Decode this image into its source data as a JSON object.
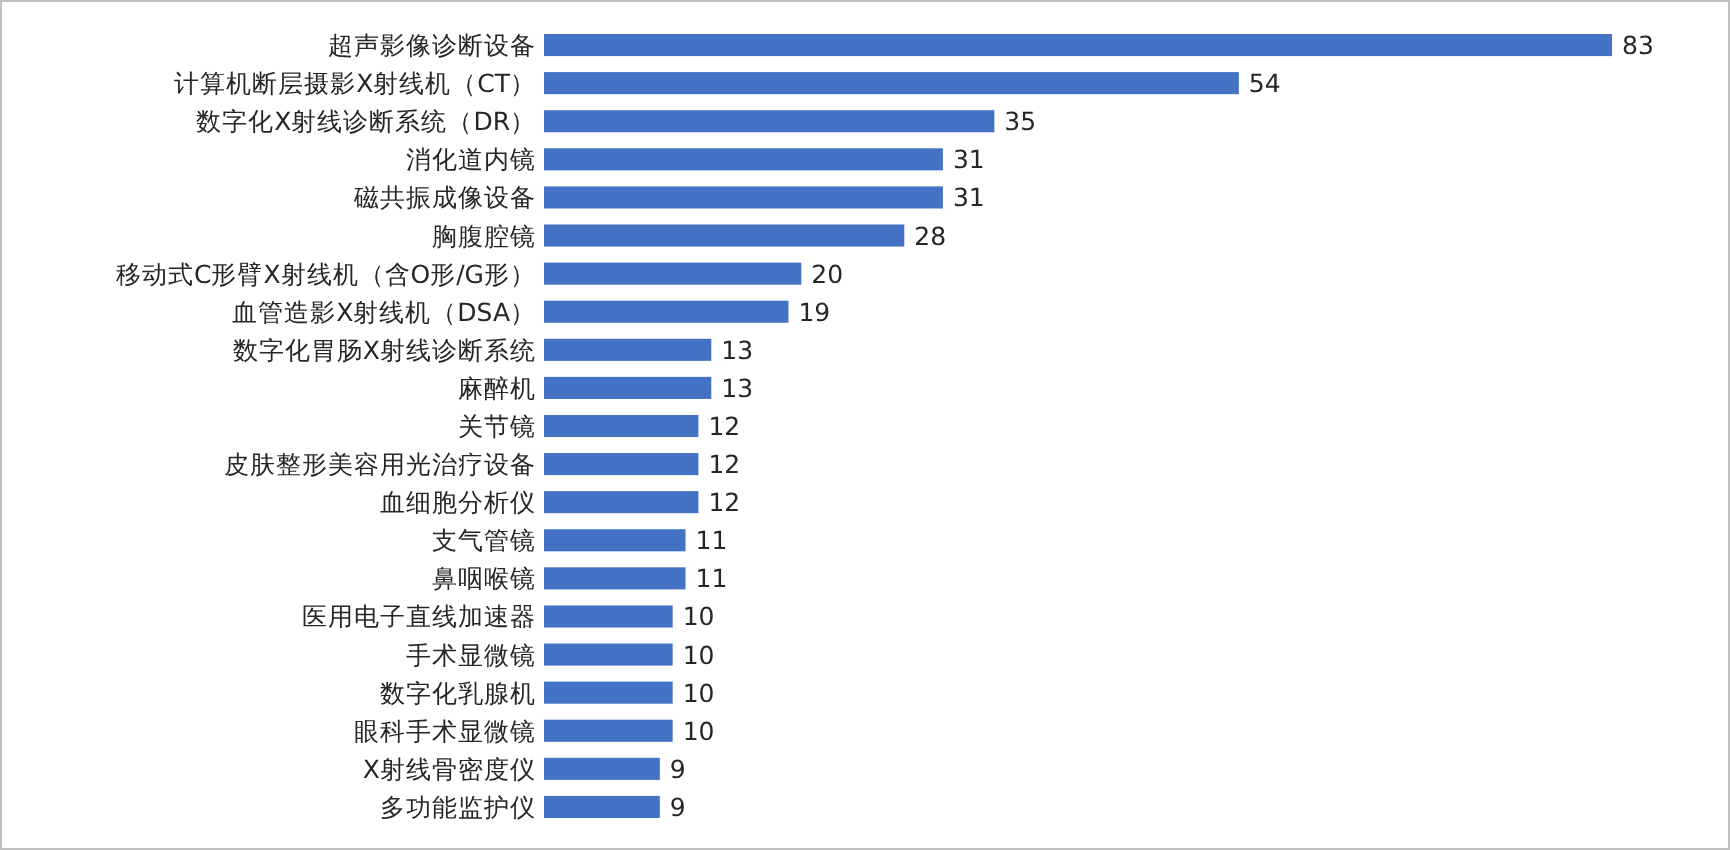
{
  "chart_data": {
    "type": "bar",
    "orientation": "horizontal",
    "data_labels": true,
    "color": "#4472c4",
    "categories": [
      "超声影像诊断设备",
      "计算机断层摄影X射线机（CT）",
      "数字化X射线诊断系统（DR）",
      "消化道内镜",
      "磁共振成像设备",
      "胸腹腔镜",
      "移动式C形臂X射线机（含O形/G形）",
      "血管造影X射线机（DSA）",
      "数字化胃肠X射线诊断系统",
      "麻醉机",
      "关节镜",
      "皮肤整形美容用光治疗设备",
      "血细胞分析仪",
      "支气管镜",
      "鼻咽喉镜",
      "医用电子直线加速器",
      "手术显微镜",
      "数字化乳腺机",
      "眼科手术显微镜",
      "X射线骨密度仪",
      "多功能监护仪"
    ],
    "values": [
      83,
      54,
      35,
      31,
      31,
      28,
      20,
      19,
      13,
      13,
      12,
      12,
      12,
      11,
      11,
      10,
      10,
      10,
      10,
      9,
      9
    ]
  }
}
